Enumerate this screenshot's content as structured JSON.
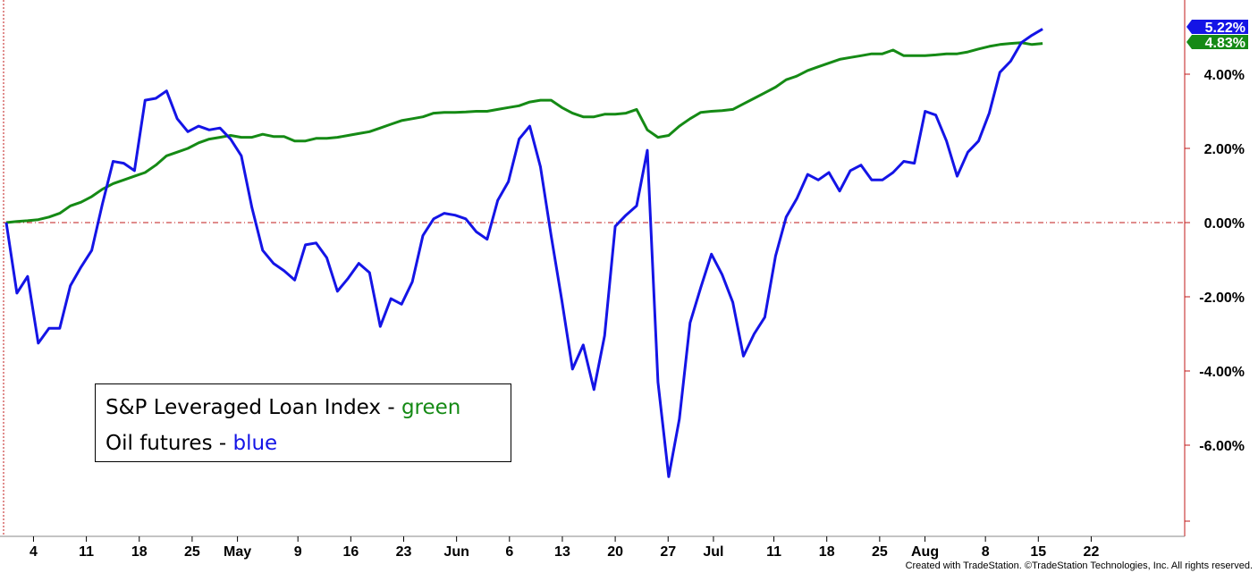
{
  "chart_data": {
    "type": "line",
    "ylim": [
      -8.0,
      6.0
    ],
    "y_ticks": [
      "-6.00%",
      "-4.00%",
      "-2.00%",
      "0.00%",
      "2.00%",
      "4.00%"
    ],
    "y_tick_values": [
      -6,
      -4,
      -2,
      0,
      2,
      4
    ],
    "reference_line": 0,
    "x_tick_labels": [
      "4",
      "11",
      "18",
      "25",
      "May",
      "9",
      "16",
      "23",
      "Jun",
      "6",
      "13",
      "20",
      "27",
      "Jul",
      "11",
      "18",
      "25",
      "Aug",
      "8",
      "15",
      "22"
    ],
    "x_tick_positions_day": [
      1,
      8,
      15,
      22,
      28,
      36,
      43,
      50,
      57,
      64,
      71,
      78,
      85,
      91,
      99,
      106,
      113,
      119,
      127,
      134,
      141
    ],
    "x_range_day": [
      0,
      154
    ],
    "series": [
      {
        "color": "#1414e6",
        "last_label": "5.22%",
        "points": [
          [
            0,
            0.0
          ],
          [
            1,
            -1.9
          ],
          [
            2,
            -1.45
          ],
          [
            3,
            -3.25
          ],
          [
            4,
            -2.85
          ],
          [
            5,
            -2.85
          ],
          [
            6,
            -1.7
          ],
          [
            7,
            -1.2
          ],
          [
            8,
            -0.75
          ],
          [
            9,
            0.5
          ],
          [
            10,
            1.65
          ],
          [
            11,
            1.6
          ],
          [
            12,
            1.4
          ],
          [
            13,
            3.3
          ],
          [
            14,
            3.35
          ],
          [
            15,
            3.55
          ],
          [
            16,
            2.8
          ],
          [
            17,
            2.45
          ],
          [
            18,
            2.6
          ],
          [
            19,
            2.5
          ],
          [
            20,
            2.55
          ],
          [
            21,
            2.25
          ],
          [
            22,
            1.8
          ],
          [
            23,
            0.4
          ],
          [
            24,
            -0.75
          ],
          [
            25,
            -1.1
          ],
          [
            26,
            -1.3
          ],
          [
            27,
            -1.55
          ],
          [
            28,
            -0.6
          ],
          [
            29,
            -0.55
          ],
          [
            30,
            -0.95
          ],
          [
            31,
            -1.85
          ],
          [
            32,
            -1.5
          ],
          [
            33,
            -1.1
          ],
          [
            34,
            -1.35
          ],
          [
            35,
            -2.8
          ],
          [
            36,
            -2.05
          ],
          [
            37,
            -2.2
          ],
          [
            38,
            -1.6
          ],
          [
            39,
            -0.35
          ],
          [
            40,
            0.1
          ],
          [
            41,
            0.25
          ],
          [
            42,
            0.2
          ],
          [
            43,
            0.1
          ],
          [
            44,
            -0.25
          ],
          [
            45,
            -0.45
          ],
          [
            46,
            0.6
          ],
          [
            47,
            1.1
          ],
          [
            48,
            2.25
          ],
          [
            49,
            2.6
          ],
          [
            50,
            1.5
          ],
          [
            51,
            -0.35
          ],
          [
            52,
            -2.1
          ],
          [
            53,
            -3.95
          ],
          [
            54,
            -3.3
          ],
          [
            55,
            -4.5
          ],
          [
            56,
            -3.05
          ],
          [
            57,
            -0.1
          ],
          [
            58,
            0.2
          ],
          [
            59,
            0.45
          ],
          [
            60,
            1.95
          ],
          [
            61,
            -4.3
          ],
          [
            62,
            -6.85
          ],
          [
            63,
            -5.3
          ],
          [
            64,
            -2.7
          ],
          [
            65,
            -1.75
          ],
          [
            66,
            -0.85
          ],
          [
            67,
            -1.4
          ],
          [
            68,
            -2.15
          ],
          [
            69,
            -3.6
          ],
          [
            70,
            -3.0
          ],
          [
            71,
            -2.55
          ],
          [
            72,
            -0.9
          ],
          [
            73,
            0.15
          ],
          [
            74,
            0.65
          ],
          [
            75,
            1.3
          ],
          [
            76,
            1.15
          ],
          [
            77,
            1.35
          ],
          [
            78,
            0.85
          ],
          [
            79,
            1.4
          ],
          [
            80,
            1.55
          ],
          [
            81,
            1.15
          ],
          [
            82,
            1.15
          ],
          [
            83,
            1.35
          ],
          [
            84,
            1.65
          ],
          [
            85,
            1.6
          ],
          [
            86,
            3.0
          ],
          [
            87,
            2.9
          ],
          [
            88,
            2.2
          ],
          [
            89,
            1.25
          ],
          [
            90,
            1.9
          ],
          [
            91,
            2.2
          ],
          [
            92,
            2.95
          ],
          [
            93,
            4.05
          ],
          [
            94,
            4.35
          ],
          [
            95,
            4.85
          ],
          [
            96,
            5.05
          ],
          [
            97,
            5.22
          ]
        ]
      },
      {
        "color": "#158a15",
        "last_label": "4.83%",
        "points": [
          [
            0,
            0.0
          ],
          [
            1,
            0.03
          ],
          [
            2,
            0.05
          ],
          [
            3,
            0.08
          ],
          [
            4,
            0.15
          ],
          [
            5,
            0.25
          ],
          [
            6,
            0.45
          ],
          [
            7,
            0.55
          ],
          [
            8,
            0.7
          ],
          [
            9,
            0.9
          ],
          [
            10,
            1.05
          ],
          [
            11,
            1.15
          ],
          [
            12,
            1.25
          ],
          [
            13,
            1.35
          ],
          [
            14,
            1.55
          ],
          [
            15,
            1.8
          ],
          [
            16,
            1.9
          ],
          [
            17,
            2.0
          ],
          [
            18,
            2.15
          ],
          [
            19,
            2.25
          ],
          [
            20,
            2.3
          ],
          [
            21,
            2.35
          ],
          [
            22,
            2.3
          ],
          [
            23,
            2.3
          ],
          [
            24,
            2.38
          ],
          [
            25,
            2.32
          ],
          [
            26,
            2.32
          ],
          [
            27,
            2.2
          ],
          [
            28,
            2.2
          ],
          [
            29,
            2.27
          ],
          [
            30,
            2.27
          ],
          [
            31,
            2.3
          ],
          [
            32,
            2.35
          ],
          [
            33,
            2.4
          ],
          [
            34,
            2.45
          ],
          [
            35,
            2.55
          ],
          [
            36,
            2.65
          ],
          [
            37,
            2.75
          ],
          [
            38,
            2.8
          ],
          [
            39,
            2.85
          ],
          [
            40,
            2.95
          ],
          [
            41,
            2.97
          ],
          [
            42,
            2.97
          ],
          [
            43,
            2.98
          ],
          [
            44,
            3.0
          ],
          [
            45,
            3.0
          ],
          [
            46,
            3.05
          ],
          [
            47,
            3.1
          ],
          [
            48,
            3.15
          ],
          [
            49,
            3.25
          ],
          [
            50,
            3.3
          ],
          [
            51,
            3.3
          ],
          [
            52,
            3.1
          ],
          [
            53,
            2.95
          ],
          [
            54,
            2.85
          ],
          [
            55,
            2.85
          ],
          [
            56,
            2.92
          ],
          [
            57,
            2.92
          ],
          [
            58,
            2.95
          ],
          [
            59,
            3.05
          ],
          [
            60,
            2.5
          ],
          [
            61,
            2.3
          ],
          [
            62,
            2.35
          ],
          [
            63,
            2.6
          ],
          [
            64,
            2.8
          ],
          [
            65,
            2.97
          ],
          [
            66,
            3.0
          ],
          [
            67,
            3.02
          ],
          [
            68,
            3.05
          ],
          [
            69,
            3.2
          ],
          [
            70,
            3.35
          ],
          [
            71,
            3.5
          ],
          [
            72,
            3.65
          ],
          [
            73,
            3.85
          ],
          [
            74,
            3.95
          ],
          [
            75,
            4.1
          ],
          [
            76,
            4.2
          ],
          [
            77,
            4.3
          ],
          [
            78,
            4.4
          ],
          [
            79,
            4.45
          ],
          [
            80,
            4.5
          ],
          [
            81,
            4.55
          ],
          [
            82,
            4.55
          ],
          [
            83,
            4.65
          ],
          [
            84,
            4.5
          ],
          [
            85,
            4.5
          ],
          [
            86,
            4.5
          ],
          [
            87,
            4.52
          ],
          [
            88,
            4.55
          ],
          [
            89,
            4.55
          ],
          [
            90,
            4.6
          ],
          [
            91,
            4.68
          ],
          [
            92,
            4.75
          ],
          [
            93,
            4.8
          ],
          [
            94,
            4.83
          ],
          [
            95,
            4.85
          ],
          [
            96,
            4.8
          ],
          [
            97,
            4.83
          ]
        ]
      }
    ]
  },
  "legend": {
    "line1_prefix": "S&P Leveraged Loan Index - ",
    "line1_color_word": "green",
    "line2_prefix": "Oil futures - ",
    "line2_color_word": "blue"
  },
  "colors": {
    "blue": "#1414e6",
    "green": "#158a15",
    "zero_line": "#c01818",
    "frame": "#c01818"
  },
  "footer": "Created with TradeStation. ©TradeStation Technologies, Inc. All rights reserved."
}
